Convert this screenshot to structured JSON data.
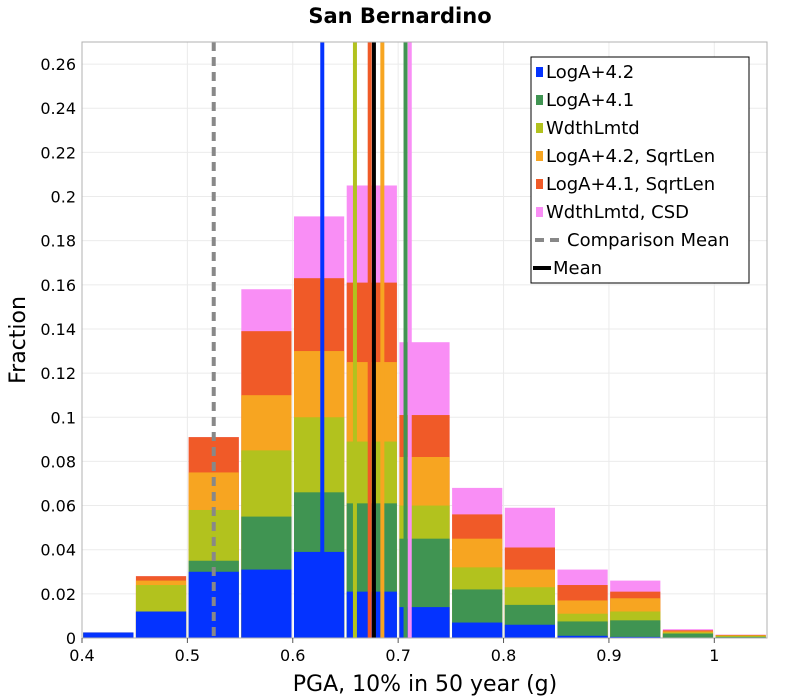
{
  "chart_data": {
    "type": "bar",
    "stacked": true,
    "title": "San Bernardino",
    "xlabel": "PGA, 10% in 50 year (g)",
    "ylabel": "Fraction",
    "xlim": [
      0.4,
      1.05
    ],
    "ylim": [
      0,
      0.27
    ],
    "xticks": [
      "0.4",
      "0.5",
      "0.6",
      "0.7",
      "0.8",
      "0.9",
      "1"
    ],
    "yticks": [
      "0",
      "0.02",
      "0.04",
      "0.06",
      "0.08",
      "0.1",
      "0.12",
      "0.14",
      "0.16",
      "0.18",
      "0.2",
      "0.22",
      "0.24",
      "0.26"
    ],
    "grid": true,
    "legend_position": "top-right",
    "bin_width": 0.05,
    "bin_starts": [
      0.4,
      0.45,
      0.5,
      0.55,
      0.6,
      0.65,
      0.7,
      0.75,
      0.8,
      0.85,
      0.9,
      0.95,
      1.0
    ],
    "series": [
      {
        "name": "LogA+4.2",
        "color": "#0433ff",
        "cumulative": [
          0.0025,
          0.012,
          0.03,
          0.031,
          0.039,
          0.021,
          0.014,
          0.007,
          0.006,
          0.001,
          0.0005,
          0,
          0
        ]
      },
      {
        "name": "LogA+4.1",
        "color": "#409452",
        "cumulative": [
          0.0025,
          0.012,
          0.035,
          0.055,
          0.066,
          0.061,
          0.045,
          0.022,
          0.015,
          0.0075,
          0.008,
          0.002,
          0.0005
        ]
      },
      {
        "name": "WdthLmtd",
        "color": "#b2c21e",
        "cumulative": [
          0.0025,
          0.024,
          0.058,
          0.085,
          0.1,
          0.089,
          0.06,
          0.032,
          0.023,
          0.011,
          0.012,
          0.0025,
          0.001
        ]
      },
      {
        "name": "LogA+4.2, SqrtLen",
        "color": "#f7a521",
        "cumulative": [
          0.0025,
          0.026,
          0.075,
          0.11,
          0.13,
          0.125,
          0.082,
          0.045,
          0.031,
          0.017,
          0.018,
          0.003,
          0.0012
        ]
      },
      {
        "name": "LogA+4.1, SqrtLen",
        "color": "#f05a28",
        "cumulative": [
          0.0025,
          0.028,
          0.091,
          0.139,
          0.163,
          0.161,
          0.101,
          0.056,
          0.041,
          0.024,
          0.021,
          0.0035,
          0.0014
        ]
      },
      {
        "name": "WdthLmtd, CSD",
        "color": "#f98ef5",
        "cumulative": [
          0.0025,
          0.028,
          0.091,
          0.158,
          0.191,
          0.205,
          0.134,
          0.068,
          0.059,
          0.031,
          0.026,
          0.004,
          0.0015
        ]
      }
    ],
    "series_means": [
      {
        "name": "LogA+4.2",
        "color": "#0433ff",
        "x": 0.628
      },
      {
        "name": "LogA+4.1",
        "color": "#409452",
        "x": 0.707
      },
      {
        "name": "WdthLmtd",
        "color": "#b2c21e",
        "x": 0.659
      },
      {
        "name": "LogA+4.2, SqrtLen",
        "color": "#f7a521",
        "x": 0.685
      },
      {
        "name": "LogA+4.1, SqrtLen",
        "color": "#f05a28",
        "x": 0.673
      },
      {
        "name": "WdthLmtd, CSD",
        "color": "#f98ef5",
        "x": 0.711
      }
    ],
    "comparison_mean": {
      "name": "Comparison Mean",
      "color": "#888888",
      "x": 0.525
    },
    "mean": {
      "name": "Mean",
      "color": "#000000",
      "x": 0.677
    }
  }
}
